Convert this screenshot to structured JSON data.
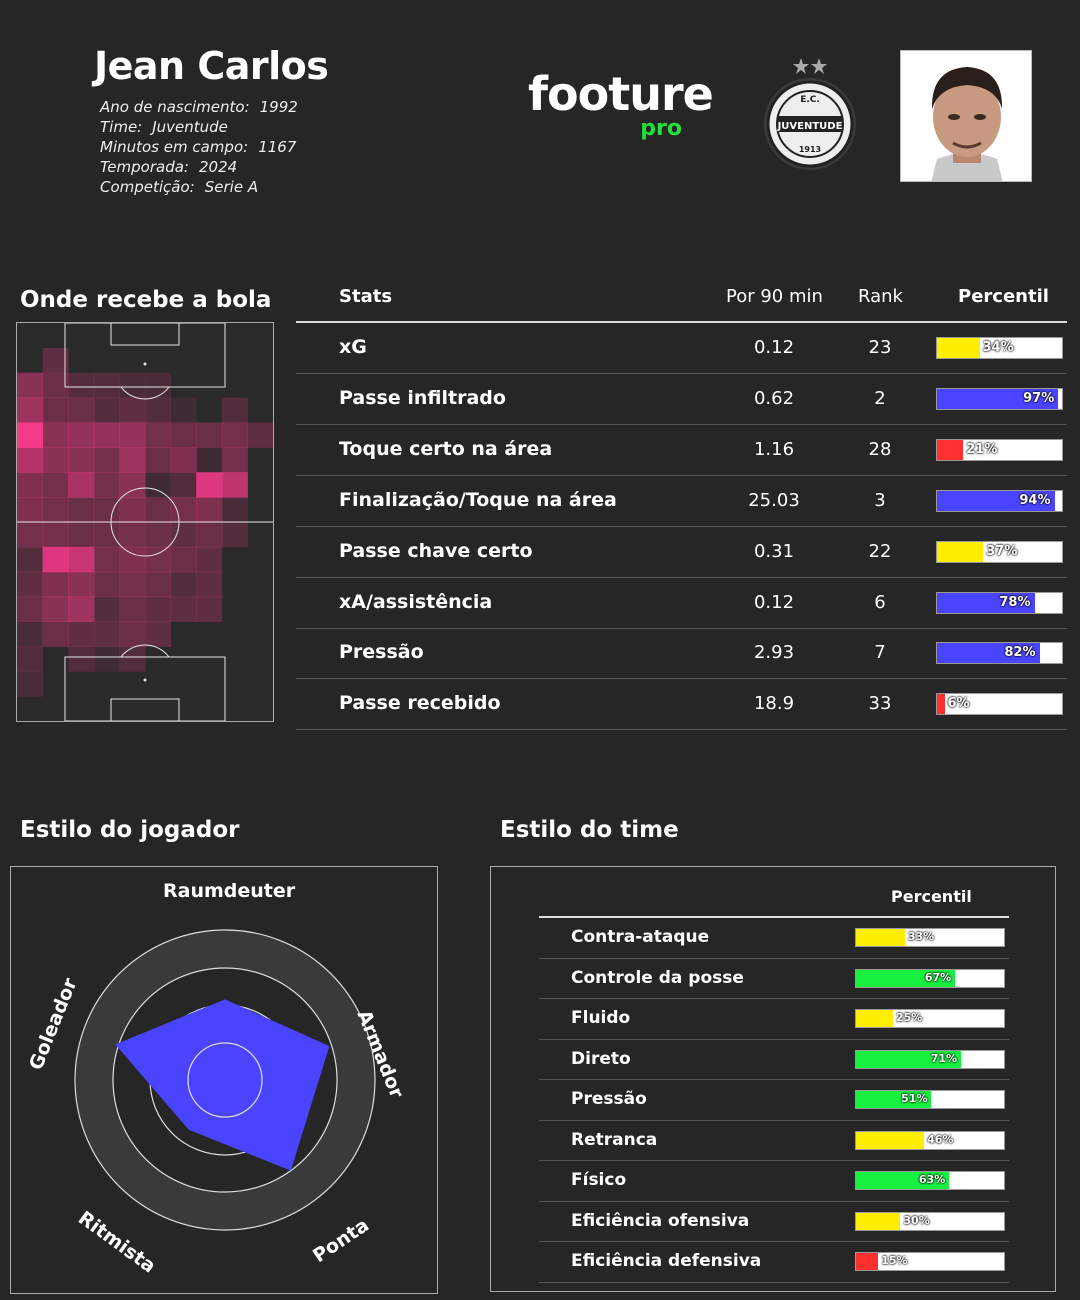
{
  "player": {
    "name": "Jean Carlos",
    "info": [
      {
        "label": "Ano de nascimento:",
        "value": "1992"
      },
      {
        "label": "Time:",
        "value": "Juventude"
      },
      {
        "label": "Minutos em campo:",
        "value": "1167"
      },
      {
        "label": "Temporada:",
        "value": "2024"
      },
      {
        "label": "Competição:",
        "value": "Serie A"
      }
    ]
  },
  "brand": {
    "word": "footure",
    "sub": "pro"
  },
  "club_logo": {
    "text": "JUVENTUDE",
    "abbr": "E.C.",
    "year": "1913",
    "icon": "juventude-crest-icon"
  },
  "colors": {
    "background": "#262626",
    "accent_green": "#22e03a",
    "bar_yellow": "#ffee00",
    "bar_blue": "#4a44ff",
    "bar_red": "#ff3030",
    "bar_green": "#18f040",
    "heat": "#ff3a8c"
  },
  "pitch": {
    "title": "Onde recebe a bola",
    "grid_cols": 10,
    "grid_rows": 16,
    "heat_intensity": [
      [
        0,
        0,
        0,
        0,
        0,
        0,
        0,
        0,
        0,
        0
      ],
      [
        0,
        0.25,
        0,
        0,
        0,
        0,
        0,
        0,
        0,
        0
      ],
      [
        0.45,
        0.3,
        0.2,
        0.2,
        0.15,
        0.15,
        0,
        0,
        0,
        0
      ],
      [
        0.55,
        0.3,
        0.3,
        0.2,
        0.25,
        0.2,
        0.1,
        0,
        0.2,
        0
      ],
      [
        0.95,
        0.45,
        0.5,
        0.5,
        0.5,
        0.35,
        0.3,
        0.3,
        0.35,
        0.25
      ],
      [
        0.65,
        0.45,
        0.45,
        0.35,
        0.55,
        0.3,
        0.4,
        0.1,
        0.35,
        0
      ],
      [
        0.4,
        0.35,
        0.6,
        0.35,
        0.45,
        0.1,
        0.2,
        0.85,
        0.7,
        0
      ],
      [
        0.4,
        0.35,
        0.3,
        0.3,
        0.4,
        0.3,
        0.35,
        0.4,
        0.15,
        0
      ],
      [
        0.35,
        0.35,
        0.3,
        0.3,
        0.35,
        0.3,
        0.25,
        0.3,
        0.2,
        0
      ],
      [
        0.2,
        0.85,
        0.75,
        0.35,
        0.4,
        0.35,
        0.3,
        0.25,
        0,
        0
      ],
      [
        0.25,
        0.4,
        0.45,
        0.3,
        0.35,
        0.3,
        0.2,
        0.25,
        0,
        0
      ],
      [
        0.3,
        0.45,
        0.55,
        0.2,
        0.3,
        0.25,
        0.25,
        0.25,
        0,
        0
      ],
      [
        0.15,
        0.3,
        0.25,
        0.25,
        0.3,
        0.25,
        0,
        0,
        0,
        0
      ],
      [
        0.2,
        0,
        0.2,
        0.1,
        0.2,
        0,
        0,
        0,
        0,
        0
      ],
      [
        0.15,
        0,
        0,
        0,
        0,
        0,
        0,
        0,
        0,
        0
      ],
      [
        0,
        0,
        0,
        0,
        0,
        0,
        0,
        0,
        0,
        0
      ]
    ]
  },
  "stats": {
    "headers": {
      "stats": "Stats",
      "per90": "Por 90 min",
      "rank": "Rank",
      "percentile": "Percentil"
    },
    "rows": [
      {
        "name": "xG",
        "per90": "0.12",
        "rank": "23",
        "pct": 34,
        "pct_label": "34%",
        "color": "yellow"
      },
      {
        "name": "Passe infiltrado",
        "per90": "0.62",
        "rank": "2",
        "pct": 97,
        "pct_label": "97%",
        "color": "blue"
      },
      {
        "name": "Toque certo na área",
        "per90": "1.16",
        "rank": "28",
        "pct": 21,
        "pct_label": "21%",
        "color": "red"
      },
      {
        "name": "Finalização/Toque na área",
        "per90": "25.03",
        "rank": "3",
        "pct": 94,
        "pct_label": "94%",
        "color": "blue"
      },
      {
        "name": "Passe chave certo",
        "per90": "0.31",
        "rank": "22",
        "pct": 37,
        "pct_label": "37%",
        "color": "yellow"
      },
      {
        "name": "xA/assistência",
        "per90": "0.12",
        "rank": "6",
        "pct": 78,
        "pct_label": "78%",
        "color": "blue"
      },
      {
        "name": "Pressão",
        "per90": "2.93",
        "rank": "7",
        "pct": 82,
        "pct_label": "82%",
        "color": "blue"
      },
      {
        "name": "Passe recebido",
        "per90": "18.9",
        "rank": "33",
        "pct": 6,
        "pct_label": "6%",
        "color": "red"
      }
    ]
  },
  "player_style": {
    "title": "Estilo do jogador",
    "axes": [
      {
        "label": "Raumdeuter",
        "value": 0.72
      },
      {
        "label": "Armador",
        "value": 0.98
      },
      {
        "label": "Ponta",
        "value": 1.0
      },
      {
        "label": "Ritmista",
        "value": 0.55
      },
      {
        "label": "Goleador",
        "value": 1.03
      }
    ]
  },
  "team_style": {
    "title": "Estilo do time",
    "header": "Percentil",
    "rows": [
      {
        "name": "Contra-ataque",
        "pct": 33,
        "pct_label": "33%",
        "color": "yellow"
      },
      {
        "name": "Controle da posse",
        "pct": 67,
        "pct_label": "67%",
        "color": "green"
      },
      {
        "name": "Fluido",
        "pct": 25,
        "pct_label": "25%",
        "color": "yellow"
      },
      {
        "name": "Direto",
        "pct": 71,
        "pct_label": "71%",
        "color": "green"
      },
      {
        "name": "Pressão",
        "pct": 51,
        "pct_label": "51%",
        "color": "green"
      },
      {
        "name": "Retranca",
        "pct": 46,
        "pct_label": "46%",
        "color": "yellow"
      },
      {
        "name": "Físico",
        "pct": 63,
        "pct_label": "63%",
        "color": "green"
      },
      {
        "name": "Eficiência ofensiva",
        "pct": 30,
        "pct_label": "30%",
        "color": "yellow"
      },
      {
        "name": "Eficiência defensiva",
        "pct": 15,
        "pct_label": "15%",
        "color": "red"
      }
    ]
  }
}
